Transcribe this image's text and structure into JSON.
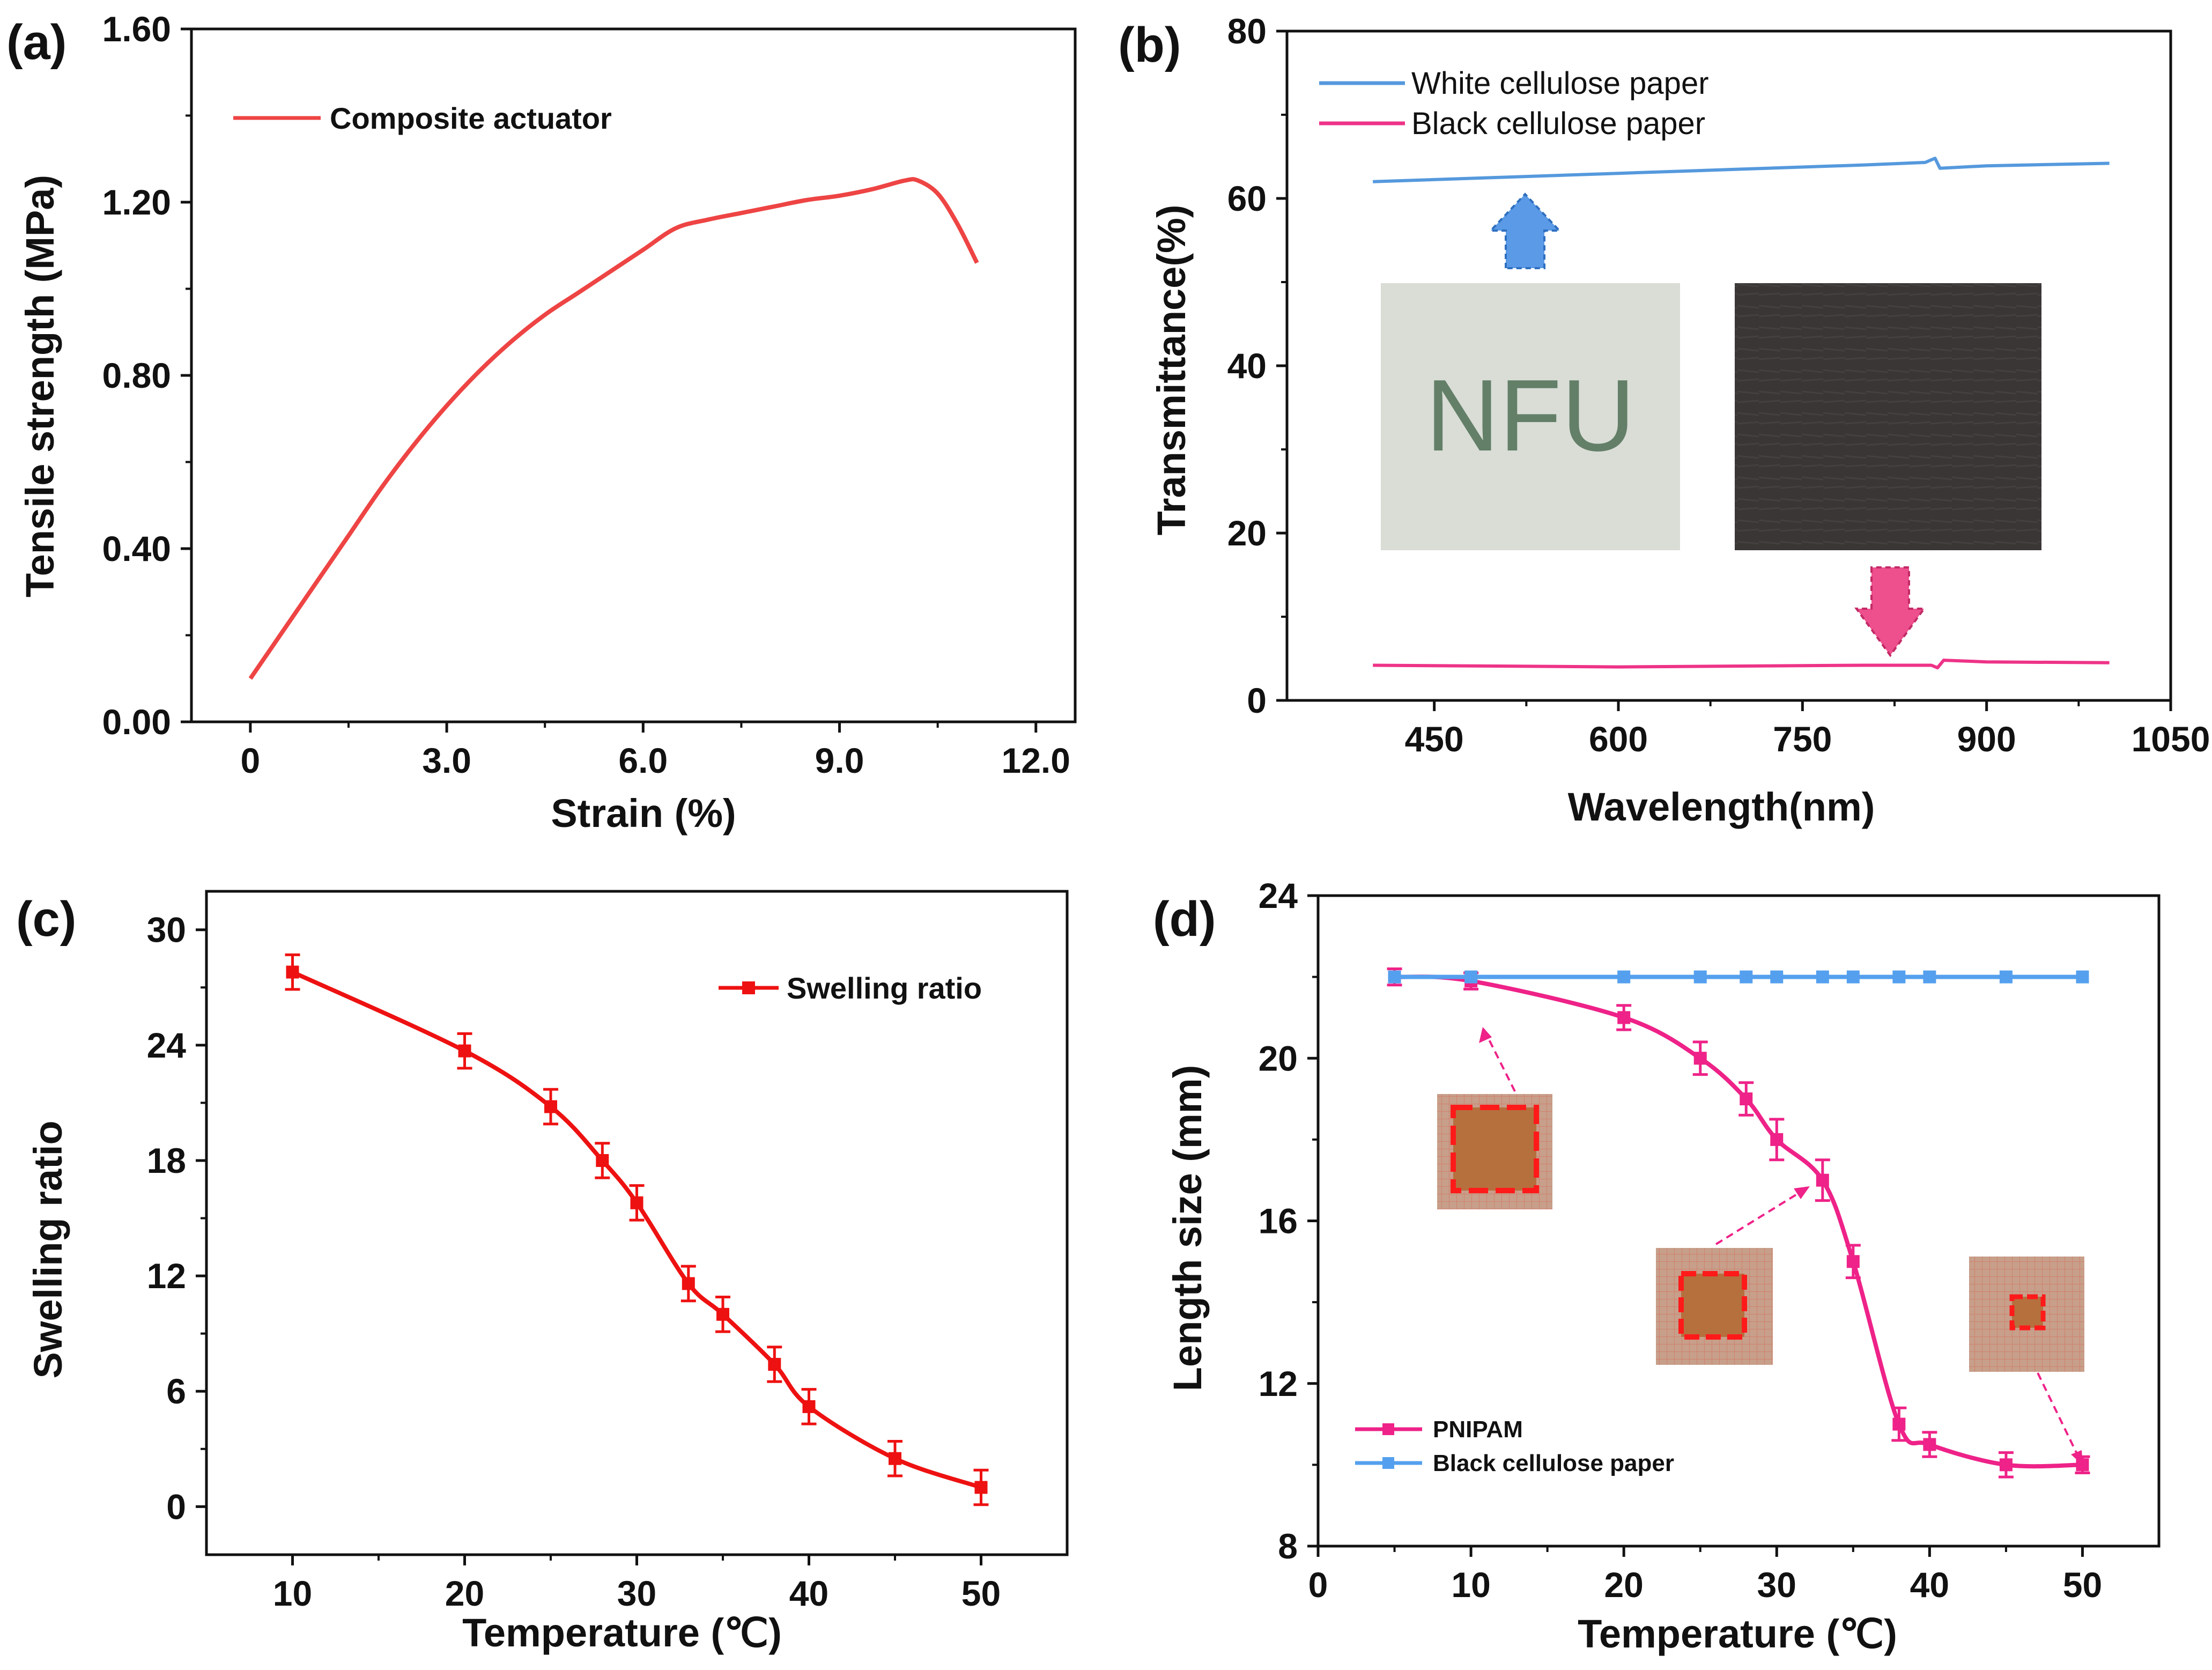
{
  "chart_data": [
    {
      "id": "a",
      "panel_label": "(a)",
      "type": "line",
      "xlabel": "Strain (%)",
      "ylabel": "Tensile strength  (MPa)",
      "xlim": [
        -0.9,
        12.6
      ],
      "ylim": [
        0,
        1.6
      ],
      "xticks": [
        "0",
        "3.0",
        "6.0",
        "9.0",
        "12.0"
      ],
      "xtick_values": [
        0,
        3,
        6,
        9,
        12
      ],
      "yticks": [
        "0.00",
        "0.40",
        "0.80",
        "1.20",
        "1.60"
      ],
      "ytick_values": [
        0,
        0.4,
        0.8,
        1.2,
        1.6
      ],
      "legend_position": "top-left",
      "series": [
        {
          "name": "Composite actuator",
          "color": "#ee4444",
          "x": [
            0,
            0.5,
            1.0,
            1.5,
            2.0,
            2.5,
            3.0,
            3.5,
            4.0,
            4.5,
            5.0,
            5.5,
            6.0,
            6.5,
            7.0,
            7.5,
            8.0,
            8.5,
            9.0,
            9.5,
            10.0,
            10.2,
            10.5,
            10.8,
            11.1
          ],
          "y": [
            0.1,
            0.21,
            0.32,
            0.43,
            0.54,
            0.64,
            0.73,
            0.81,
            0.88,
            0.94,
            0.99,
            1.04,
            1.09,
            1.14,
            1.16,
            1.175,
            1.19,
            1.205,
            1.215,
            1.23,
            1.25,
            1.25,
            1.22,
            1.15,
            1.06
          ]
        }
      ]
    },
    {
      "id": "b",
      "panel_label": "(b)",
      "type": "line",
      "xlabel": "Wavelength(nm)",
      "ylabel": "Transmittance(%)",
      "xlim": [
        330,
        1050
      ],
      "ylim": [
        0,
        80
      ],
      "xticks": [
        "450",
        "600",
        "750",
        "900",
        "1050"
      ],
      "xtick_values": [
        450,
        600,
        750,
        900,
        1050
      ],
      "yticks": [
        "0",
        "20",
        "40",
        "60",
        "80"
      ],
      "ytick_values": [
        0,
        20,
        40,
        60,
        80
      ],
      "legend_position": "top-left",
      "series": [
        {
          "name": "White cellulose paper",
          "color": "#5599dd",
          "x": [
            400,
            500,
            600,
            700,
            800,
            850,
            858,
            862,
            900,
            1000
          ],
          "y": [
            62.0,
            62.5,
            63.0,
            63.5,
            64.0,
            64.3,
            64.8,
            63.6,
            63.9,
            64.2
          ]
        },
        {
          "name": "Black cellulose paper",
          "color": "#ee3388",
          "x": [
            400,
            500,
            600,
            700,
            800,
            855,
            860,
            865,
            900,
            1000
          ],
          "y": [
            4.2,
            4.1,
            4.0,
            4.1,
            4.2,
            4.2,
            3.9,
            4.8,
            4.6,
            4.5
          ]
        }
      ],
      "inset_text": "NFU"
    },
    {
      "id": "c",
      "panel_label": "(c)",
      "type": "line",
      "xlabel": "Temperature  (℃)",
      "ylabel": "Swelling ratio",
      "xlim": [
        5,
        55
      ],
      "ylim": [
        -2.5,
        32
      ],
      "xticks": [
        "10",
        "20",
        "30",
        "40",
        "50"
      ],
      "xtick_values": [
        10,
        20,
        30,
        40,
        50
      ],
      "yticks": [
        "0",
        "6",
        "12",
        "18",
        "24",
        "30"
      ],
      "ytick_values": [
        0,
        6,
        12,
        18,
        24,
        30
      ],
      "legend_position": "top-right",
      "series": [
        {
          "name": "Swelling ratio",
          "color": "#ee1111",
          "x": [
            10,
            20,
            25,
            28,
            30,
            33,
            35,
            38,
            40,
            45,
            50
          ],
          "y": [
            27.8,
            23.7,
            20.8,
            18.0,
            15.8,
            11.6,
            10.0,
            7.4,
            5.2,
            2.5,
            1.0
          ],
          "err": [
            0.9,
            0.9,
            0.9,
            0.9,
            0.9,
            0.9,
            0.9,
            0.9,
            0.9,
            0.9,
            0.9
          ]
        }
      ]
    },
    {
      "id": "d",
      "panel_label": "(d)",
      "type": "line",
      "xlabel": "Temperature  (℃)",
      "ylabel": "Length size  (mm)",
      "xlim": [
        0,
        55
      ],
      "ylim": [
        8,
        24
      ],
      "xticks": [
        "0",
        "10",
        "20",
        "30",
        "40",
        "50"
      ],
      "xtick_values": [
        0,
        10,
        20,
        30,
        40,
        50
      ],
      "yticks": [
        "8",
        "12",
        "16",
        "20",
        "24"
      ],
      "ytick_values": [
        8,
        12,
        16,
        20,
        24
      ],
      "legend_position": "bottom-left",
      "series": [
        {
          "name": "PNIPAM",
          "color": "#ee2288",
          "x": [
            5,
            10,
            20,
            25,
            28,
            30,
            33,
            35,
            38,
            40,
            45,
            50
          ],
          "y": [
            22.0,
            21.9,
            21.0,
            20.0,
            19.0,
            18.0,
            17.0,
            15.0,
            11.0,
            10.5,
            10.0,
            10.0
          ],
          "err": [
            0.2,
            0.2,
            0.3,
            0.4,
            0.4,
            0.5,
            0.5,
            0.4,
            0.4,
            0.3,
            0.3,
            0.2
          ]
        },
        {
          "name": "Black cellulose paper",
          "color": "#55a0ee",
          "x": [
            5,
            10,
            20,
            25,
            28,
            30,
            33,
            35,
            38,
            40,
            45,
            50
          ],
          "y": [
            22,
            22,
            22,
            22,
            22,
            22,
            22,
            22,
            22,
            22,
            22,
            22
          ]
        }
      ]
    }
  ]
}
